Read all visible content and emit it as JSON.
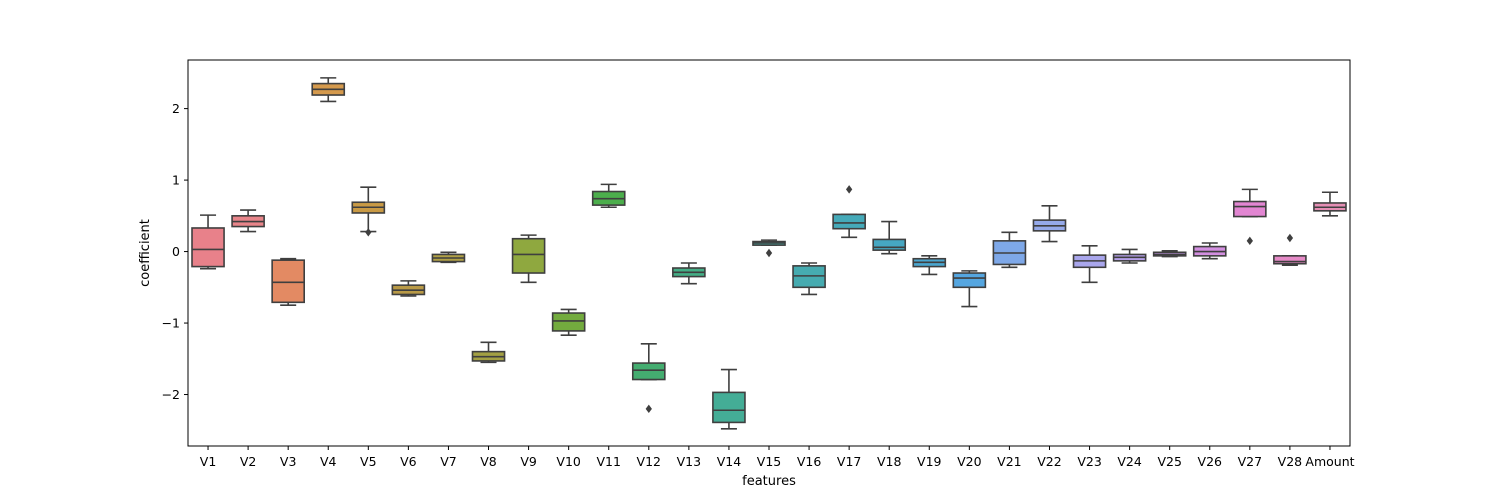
{
  "chart_data": {
    "type": "box",
    "title": "",
    "xlabel": "features",
    "ylabel": "coefficient",
    "ylim": [
      -2.72,
      2.68
    ],
    "yticks": [
      2,
      1,
      0,
      -1,
      -2
    ],
    "ytick_labels": [
      "2",
      "1",
      "0",
      "−1",
      "−2"
    ],
    "grid": false,
    "legend": "none",
    "series": [
      {
        "category": "V1",
        "color": "#e8818a",
        "whisker_low": -0.24,
        "q1": -0.21,
        "median": 0.03,
        "q3": 0.33,
        "whisker_high": 0.51,
        "outliers": []
      },
      {
        "category": "V2",
        "color": "#e8858a",
        "whisker_low": 0.28,
        "q1": 0.35,
        "median": 0.42,
        "q3": 0.5,
        "whisker_high": 0.58,
        "outliers": []
      },
      {
        "category": "V3",
        "color": "#e38a63",
        "whisker_low": -0.75,
        "q1": -0.71,
        "median": -0.43,
        "q3": -0.12,
        "whisker_high": -0.1,
        "outliers": []
      },
      {
        "category": "V4",
        "color": "#d59a4d",
        "whisker_low": 2.1,
        "q1": 2.19,
        "median": 2.27,
        "q3": 2.35,
        "whisker_high": 2.43,
        "outliers": []
      },
      {
        "category": "V5",
        "color": "#c99a45",
        "whisker_low": 0.28,
        "q1": 0.54,
        "median": 0.62,
        "q3": 0.69,
        "whisker_high": 0.9,
        "outliers": [
          0.27
        ]
      },
      {
        "category": "V6",
        "color": "#b99a47",
        "whisker_low": -0.62,
        "q1": -0.6,
        "median": -0.54,
        "q3": -0.47,
        "whisker_high": -0.41,
        "outliers": []
      },
      {
        "category": "V7",
        "color": "#b0a046",
        "whisker_low": -0.15,
        "q1": -0.14,
        "median": -0.09,
        "q3": -0.04,
        "whisker_high": -0.01,
        "outliers": []
      },
      {
        "category": "V8",
        "color": "#a3a043",
        "whisker_low": -1.55,
        "q1": -1.53,
        "median": -1.47,
        "q3": -1.4,
        "whisker_high": -1.27,
        "outliers": []
      },
      {
        "category": "V9",
        "color": "#8fa83f",
        "whisker_low": -0.43,
        "q1": -0.3,
        "median": -0.04,
        "q3": 0.18,
        "whisker_high": 0.23,
        "outliers": []
      },
      {
        "category": "V10",
        "color": "#73ab3e",
        "whisker_low": -1.17,
        "q1": -1.11,
        "median": -0.97,
        "q3": -0.86,
        "whisker_high": -0.81,
        "outliers": []
      },
      {
        "category": "V11",
        "color": "#4cae4c",
        "whisker_low": 0.62,
        "q1": 0.65,
        "median": 0.74,
        "q3": 0.84,
        "whisker_high": 0.94,
        "outliers": []
      },
      {
        "category": "V12",
        "color": "#44ad70",
        "whisker_low": -1.79,
        "q1": -1.79,
        "median": -1.66,
        "q3": -1.56,
        "whisker_high": -1.29,
        "outliers": [
          -2.2
        ]
      },
      {
        "category": "V13",
        "color": "#44ae86",
        "whisker_low": -0.45,
        "q1": -0.35,
        "median": -0.29,
        "q3": -0.23,
        "whisker_high": -0.16,
        "outliers": []
      },
      {
        "category": "V14",
        "color": "#44ad96",
        "whisker_low": -2.48,
        "q1": -2.39,
        "median": -2.22,
        "q3": -1.97,
        "whisker_high": -1.65,
        "outliers": []
      },
      {
        "category": "V15",
        "color": "#44aba3",
        "whisker_low": 0.09,
        "q1": 0.09,
        "median": 0.12,
        "q3": 0.14,
        "whisker_high": 0.16,
        "outliers": [
          -0.02
        ]
      },
      {
        "category": "V16",
        "color": "#46abb0",
        "whisker_low": -0.6,
        "q1": -0.5,
        "median": -0.34,
        "q3": -0.2,
        "whisker_high": -0.16,
        "outliers": []
      },
      {
        "category": "V17",
        "color": "#45aab9",
        "whisker_low": 0.2,
        "q1": 0.32,
        "median": 0.4,
        "q3": 0.52,
        "whisker_high": 0.52,
        "outliers": [
          0.87
        ]
      },
      {
        "category": "V18",
        "color": "#46a7c2",
        "whisker_low": -0.03,
        "q1": 0.02,
        "median": 0.06,
        "q3": 0.17,
        "whisker_high": 0.42,
        "outliers": []
      },
      {
        "category": "V19",
        "color": "#4aa6cf",
        "whisker_low": -0.32,
        "q1": -0.21,
        "median": -0.15,
        "q3": -0.1,
        "whisker_high": -0.06,
        "outliers": []
      },
      {
        "category": "V20",
        "color": "#55a6e0",
        "whisker_low": -0.77,
        "q1": -0.5,
        "median": -0.37,
        "q3": -0.3,
        "whisker_high": -0.27,
        "outliers": []
      },
      {
        "category": "V21",
        "color": "#7ea8e8",
        "whisker_low": -0.22,
        "q1": -0.18,
        "median": -0.02,
        "q3": 0.15,
        "whisker_high": 0.27,
        "outliers": []
      },
      {
        "category": "V22",
        "color": "#96aaea",
        "whisker_low": 0.14,
        "q1": 0.29,
        "median": 0.36,
        "q3": 0.44,
        "whisker_high": 0.64,
        "outliers": []
      },
      {
        "category": "V23",
        "color": "#a9a6ec",
        "whisker_low": -0.43,
        "q1": -0.22,
        "median": -0.13,
        "q3": -0.05,
        "whisker_high": 0.08,
        "outliers": []
      },
      {
        "category": "V24",
        "color": "#b6a0ea",
        "whisker_low": -0.16,
        "q1": -0.13,
        "median": -0.08,
        "q3": -0.04,
        "whisker_high": 0.03,
        "outliers": []
      },
      {
        "category": "V25",
        "color": "#c497e6",
        "whisker_low": -0.07,
        "q1": -0.06,
        "median": -0.04,
        "q3": -0.01,
        "whisker_high": 0.01,
        "outliers": []
      },
      {
        "category": "V26",
        "color": "#d38fe0",
        "whisker_low": -0.1,
        "q1": -0.06,
        "median": 0.0,
        "q3": 0.07,
        "whisker_high": 0.12,
        "outliers": []
      },
      {
        "category": "V27",
        "color": "#e286d2",
        "whisker_low": 0.49,
        "q1": 0.49,
        "median": 0.63,
        "q3": 0.7,
        "whisker_high": 0.87,
        "outliers": [
          0.15
        ]
      },
      {
        "category": "V28",
        "color": "#e68ac7",
        "whisker_low": -0.19,
        "q1": -0.17,
        "median": -0.14,
        "q3": -0.06,
        "whisker_high": -0.06,
        "outliers": [
          0.19
        ]
      },
      {
        "category": "Amount",
        "color": "#e58eb4",
        "whisker_low": 0.5,
        "q1": 0.57,
        "median": 0.62,
        "q3": 0.68,
        "whisker_high": 0.83,
        "outliers": []
      }
    ]
  }
}
